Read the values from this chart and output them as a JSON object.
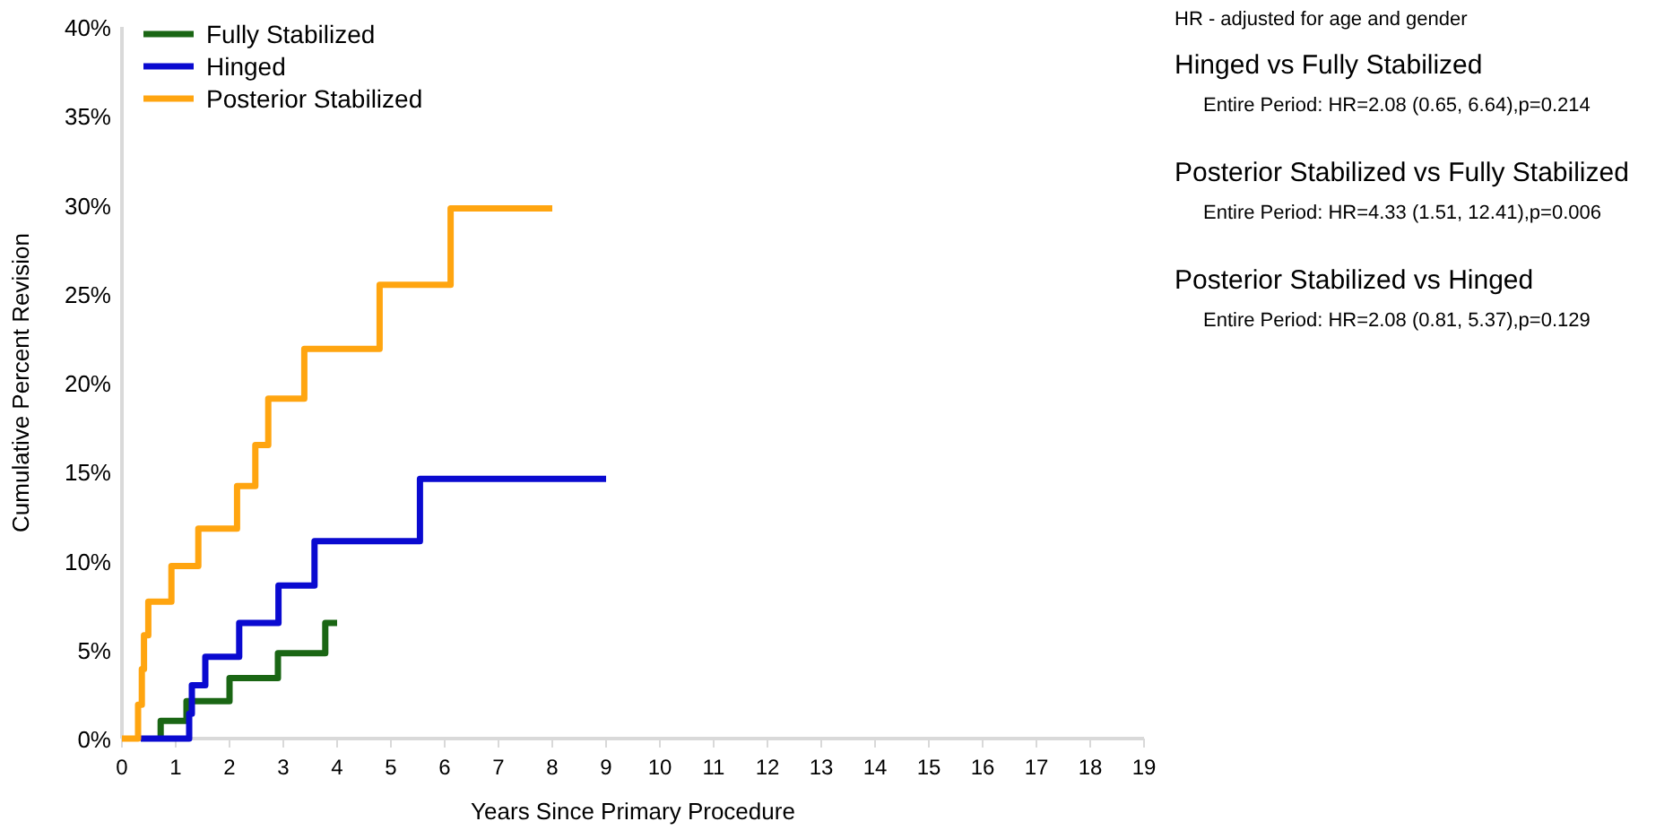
{
  "chart_data": {
    "type": "step",
    "xlabel": "Years Since Primary Procedure",
    "ylabel": "Cumulative Percent Revision",
    "xlim": [
      0,
      19
    ],
    "xticks": [
      0,
      1,
      2,
      3,
      4,
      5,
      6,
      7,
      8,
      9,
      10,
      11,
      12,
      13,
      14,
      15,
      16,
      17,
      18,
      19
    ],
    "ylim": [
      0,
      40
    ],
    "yticks": [
      {
        "value": 0,
        "label": "0%"
      },
      {
        "value": 5,
        "label": "5%"
      },
      {
        "value": 10,
        "label": "10%"
      },
      {
        "value": 15,
        "label": "15%"
      },
      {
        "value": 20,
        "label": "20%"
      },
      {
        "value": 25,
        "label": "25%"
      },
      {
        "value": 30,
        "label": "30%"
      },
      {
        "value": 35,
        "label": "35%"
      },
      {
        "value": 40,
        "label": "40%"
      }
    ],
    "grid": false,
    "legend": "top left",
    "line_style": "solid",
    "marker": "none",
    "series": [
      {
        "name": "Fully Stabilized",
        "color": "#1a6614",
        "x": [
          0.72,
          0.72,
          1.2,
          2.0,
          2.9,
          3.78,
          4.0
        ],
        "values": [
          0,
          1.0,
          2.1,
          3.4,
          4.8,
          6.5,
          6.5
        ]
      },
      {
        "name": "Hinged",
        "color": "#0a0ad0",
        "x": [
          0.35,
          1.25,
          1.3,
          1.55,
          2.18,
          2.91,
          3.58,
          5.54,
          9.0
        ],
        "values": [
          0,
          1.4,
          3.0,
          4.6,
          6.5,
          8.6,
          11.1,
          14.6,
          14.6
        ]
      },
      {
        "name": "Posterior Stabilized",
        "color": "#ffa510",
        "x": [
          0,
          0.3,
          0.37,
          0.41,
          0.49,
          0.92,
          1.42,
          2.14,
          2.48,
          2.72,
          3.39,
          4.79,
          6.11,
          8.0
        ],
        "values": [
          0,
          1.9,
          3.9,
          5.8,
          7.7,
          9.7,
          11.8,
          14.2,
          16.5,
          19.1,
          21.9,
          25.5,
          29.8,
          29.8
        ]
      }
    ],
    "annotations": [
      "HR - adjusted for age and gender",
      "Hinged vs Fully Stabilized",
      "Entire Period: HR=2.08 (0.65, 6.64),p=0.214",
      "Posterior Stabilized vs Fully Stabilized",
      "Entire Period: HR=4.33 (1.51, 12.41),p=0.006",
      "Posterior Stabilized vs Hinged",
      "Entire Period: HR=2.08 (0.81, 5.37),p=0.129"
    ]
  }
}
